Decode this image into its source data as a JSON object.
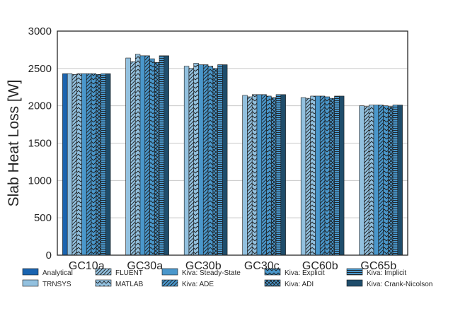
{
  "chart_data": {
    "type": "bar",
    "title": "",
    "xlabel": "",
    "ylabel": "Slab Heat Loss [W]",
    "ylim": [
      0,
      3000
    ],
    "yticks": [
      0,
      500,
      1000,
      1500,
      2000,
      2500,
      3000
    ],
    "grid": "horizontal",
    "legend_position": "bottom",
    "categories": [
      "GC10a",
      "GC30a",
      "GC30b",
      "GC30c",
      "GC60b",
      "GC65b"
    ],
    "series": [
      {
        "name": "Analytical",
        "color": "#1a64b0",
        "pattern": "none",
        "values": [
          2430,
          null,
          null,
          null,
          null,
          null
        ]
      },
      {
        "name": "TRNSYS",
        "color": "#93c1df",
        "pattern": "none",
        "values": [
          2430,
          2640,
          2530,
          2140,
          2110,
          2000
        ]
      },
      {
        "name": "FLUENT",
        "color": "#93c1df",
        "pattern": "diagonal",
        "values": [
          2420,
          2590,
          2500,
          2120,
          2100,
          1990
        ]
      },
      {
        "name": "MATLAB",
        "color": "#93c1df",
        "pattern": "chevron",
        "values": [
          2430,
          2690,
          2570,
          2150,
          2130,
          2010
        ]
      },
      {
        "name": "Kiva: Steady-State",
        "color": "#4a97cb",
        "pattern": "none",
        "values": [
          2430,
          2670,
          2550,
          2150,
          2130,
          2010
        ]
      },
      {
        "name": "Kiva: ADE",
        "color": "#4a97cb",
        "pattern": "diagonal",
        "values": [
          2430,
          2670,
          2550,
          2150,
          2130,
          2010
        ]
      },
      {
        "name": "Kiva: Explicit",
        "color": "#4a97cb",
        "pattern": "chevron",
        "values": [
          2430,
          2630,
          2530,
          2130,
          2120,
          2000
        ]
      },
      {
        "name": "Kiva: ADI",
        "color": "#4a97cb",
        "pattern": "crosshatch",
        "values": [
          2420,
          2580,
          2500,
          2110,
          2100,
          1990
        ]
      },
      {
        "name": "Kiva: Implicit",
        "color": "#4a97cb",
        "pattern": "horizontal",
        "values": [
          2430,
          2670,
          2550,
          2150,
          2130,
          2010
        ]
      },
      {
        "name": "Kiva: Crank-Nicolson",
        "color": "#1f4d6b",
        "pattern": "none",
        "values": [
          2430,
          2670,
          2550,
          2150,
          2130,
          2010
        ]
      }
    ]
  }
}
